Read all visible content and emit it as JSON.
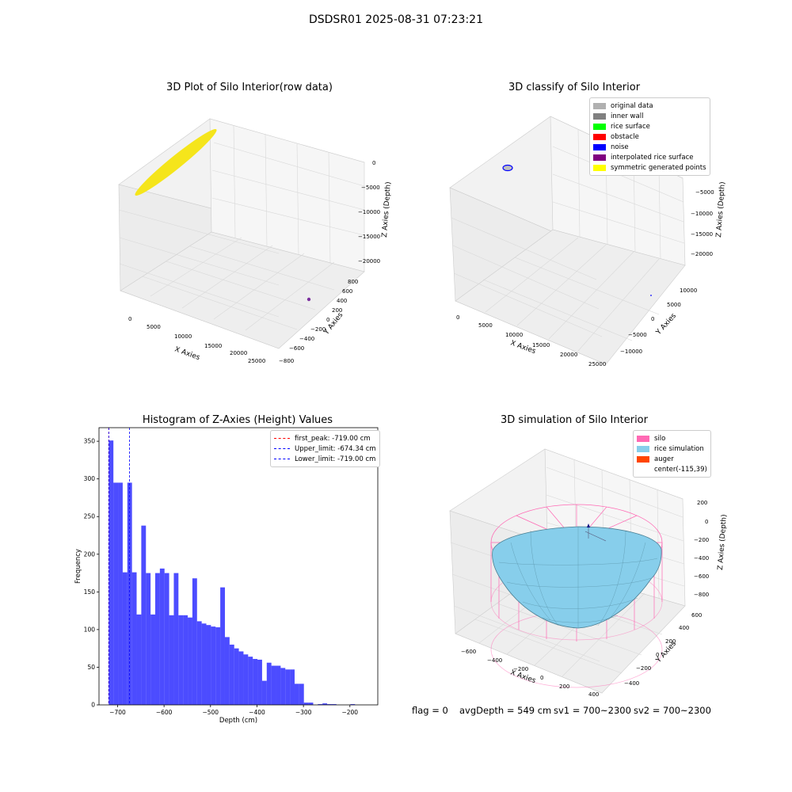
{
  "suptitle": "DSDSR01 2025-08-31 07:23:21",
  "plots": {
    "raw": {
      "title": "3D Plot of Silo Interior(row data)",
      "xlabel": "X Axies",
      "ylabel": "Y Axies",
      "zlabel": "Z Axies (Depth)",
      "xticks": [
        "0",
        "5000",
        "10000",
        "15000",
        "20000",
        "25000"
      ],
      "yticks": [
        "800",
        "600",
        "400",
        "200",
        "0",
        "−200",
        "−400",
        "−600",
        "−800"
      ],
      "zticks": [
        "0",
        "−5000",
        "−10000",
        "−15000",
        "−20000"
      ],
      "colors": {
        "points": "#f5e51b",
        "marker": "#7b2f9e"
      }
    },
    "classify": {
      "title": "3D classify of Silo Interior",
      "xlabel": "X Axies",
      "ylabel": "Y Axies",
      "zlabel": "Z Axies (Depth)",
      "xticks": [
        "0",
        "5000",
        "10000",
        "15000",
        "20000",
        "25000"
      ],
      "yticks": [
        "10000",
        "5000",
        "0",
        "−5000",
        "−10000"
      ],
      "zticks": [
        "0",
        "−5000",
        "−10000",
        "−15000",
        "−20000"
      ],
      "legend": [
        {
          "label": "original data",
          "color": "#b0b0b0"
        },
        {
          "label": "inner wall",
          "color": "#808080"
        },
        {
          "label": "rice surface",
          "color": "#00ff00"
        },
        {
          "label": "obstacle",
          "color": "#ff0000"
        },
        {
          "label": "noise",
          "color": "#0000ff"
        },
        {
          "label": "interpolated rice surface",
          "color": "#800080"
        },
        {
          "label": "symmetric generated points",
          "color": "#ffff00"
        }
      ]
    },
    "simulation": {
      "title": "3D simulation of Silo Interior",
      "xlabel": "X Axies",
      "ylabel": "Y Axies",
      "zlabel": "Z Axies (Depth)",
      "xticks": [
        "−600",
        "−400",
        "−200",
        "0",
        "200",
        "400"
      ],
      "yticks": [
        "600",
        "400",
        "200",
        "0",
        "−200",
        "−400"
      ],
      "zticks": [
        "200",
        "0",
        "−200",
        "−400",
        "−600",
        "−800"
      ],
      "legend": [
        {
          "label": "silo",
          "color": "#ff69b4"
        },
        {
          "label": "rice simulation",
          "color": "#87ceeb"
        },
        {
          "label": "auger",
          "color": "#ff4500"
        },
        {
          "label": "center(-115,39)",
          "color": ""
        }
      ],
      "colors": {
        "silo": "#ff69b4",
        "rice": "#87ceeb"
      }
    }
  },
  "chart_data": {
    "type": "bar",
    "title": "Histogram of Z-Axies (Height) Values",
    "xlabel": "Depth (cm)",
    "ylabel": "Frequency",
    "xlim": [
      -740,
      -140
    ],
    "ylim": [
      0,
      368
    ],
    "xticks": [
      -700,
      -600,
      -500,
      -400,
      -300,
      -200
    ],
    "yticks": [
      0,
      50,
      100,
      150,
      200,
      250,
      300,
      350
    ],
    "bin_width": 10,
    "bin_starts": [
      -719,
      -709,
      -699,
      -689,
      -679,
      -669,
      -659,
      -649,
      -639,
      -629,
      -619,
      -609,
      -599,
      -589,
      -579,
      -569,
      -559,
      -549,
      -539,
      -529,
      -519,
      -509,
      -499,
      -489,
      -479,
      -469,
      -459,
      -449,
      -439,
      -429,
      -419,
      -409,
      -399,
      -389,
      -379,
      -369,
      -359,
      -349,
      -339,
      -329,
      -319,
      -309,
      -299,
      -289,
      -279,
      -269,
      -259,
      -249,
      -239,
      -229,
      -219,
      -209,
      -199,
      -189,
      -179,
      -169
    ],
    "values": [
      351,
      295,
      295,
      176,
      295,
      176,
      120,
      238,
      175,
      120,
      175,
      181,
      175,
      119,
      175,
      119,
      119,
      116,
      168,
      111,
      108,
      106,
      104,
      103,
      156,
      90,
      80,
      75,
      71,
      67,
      64,
      61,
      60,
      32,
      56,
      52,
      52,
      49,
      47,
      47,
      28,
      28,
      3,
      3,
      0,
      1,
      2,
      1,
      1,
      0,
      0,
      0,
      1,
      0,
      0,
      0
    ],
    "color": "#0000ff",
    "lines": [
      {
        "label": "first_peak: -719.00 cm",
        "x": -719,
        "color": "#ff0000"
      },
      {
        "label": "Upper_limit: -674.34 cm",
        "x": -674.34,
        "color": "#0000ff"
      },
      {
        "label": "Lower_limit: -719.00 cm",
        "x": -719,
        "color": "#0000ff"
      }
    ]
  },
  "status": {
    "flag": "flag = 0",
    "avg": "avgDepth = 549 cm",
    "sv1": "sv1 = 700~2300",
    "sv2": "sv2 = 700~2300"
  }
}
